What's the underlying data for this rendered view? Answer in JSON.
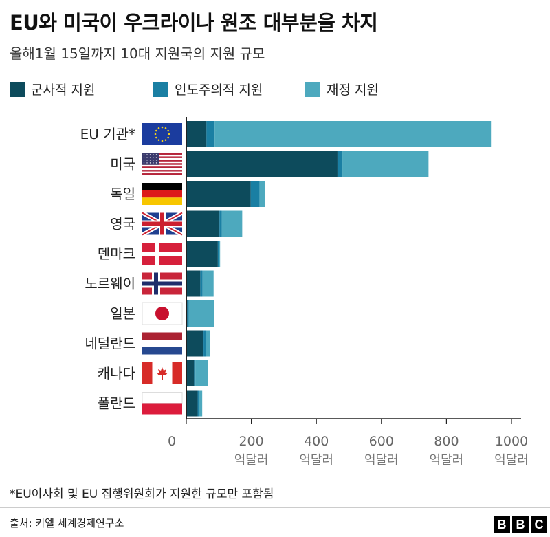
{
  "title": "EU와 미국이 우크라이나 원조 대부분을 차지",
  "subtitle": "올해1월 15일까지 10대 지원국의 지원 규모",
  "legend": [
    {
      "label": "군사적 지원",
      "color": "#0d4b5c"
    },
    {
      "label": "인도주의적 지원",
      "color": "#1a7fa3"
    },
    {
      "label": "재정 지원",
      "color": "#4da9be"
    }
  ],
  "chart_data": {
    "type": "bar",
    "orientation": "horizontal",
    "stacked": true,
    "categories": [
      "EU 기관*",
      "미국",
      "독일",
      "영국",
      "덴마크",
      "노르웨이",
      "일본",
      "네덜란드",
      "캐나다",
      "폴란드"
    ],
    "series": [
      {
        "name": "군사적 지원",
        "color": "#0d4b5c",
        "values": [
          62,
          465,
          198,
          102,
          97,
          43,
          3,
          53,
          24,
          35
        ]
      },
      {
        "name": "인도주의적 지원",
        "color": "#1a7fa3",
        "values": [
          25,
          15,
          27,
          7,
          4,
          7,
          5,
          8,
          4,
          3
        ]
      },
      {
        "name": "재정 지원",
        "color": "#4da9be",
        "values": [
          850,
          265,
          16,
          63,
          3,
          34,
          77,
          13,
          39,
          11
        ]
      }
    ],
    "xlim": [
      0,
      1000
    ],
    "xticks": [
      0,
      200,
      400,
      600,
      800,
      1000
    ],
    "tick_unit": "억달러",
    "grid": false,
    "legend_position": "top"
  },
  "flags": [
    "eu-flag",
    "us-flag",
    "germany-flag",
    "uk-flag",
    "denmark-flag",
    "norway-flag",
    "japan-flag",
    "netherlands-flag",
    "canada-flag",
    "poland-flag"
  ],
  "footnote": "*EU이사회 및 EU 집행위원회가 지원한 규모만 포함됨",
  "source": "출처: 키엘 세계경제연구소",
  "logo": [
    "B",
    "B",
    "C"
  ]
}
